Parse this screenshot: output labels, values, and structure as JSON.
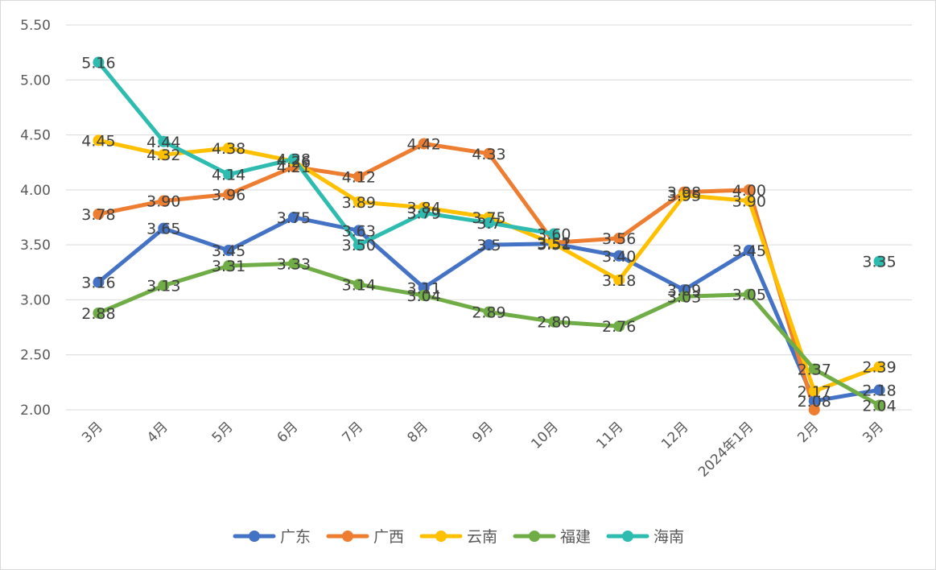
{
  "chart_data": {
    "type": "line",
    "title": "",
    "xlabel": "",
    "ylabel": "",
    "ylim": [
      2.0,
      5.5
    ],
    "yticks": [
      "2.00",
      "2.50",
      "3.00",
      "3.50",
      "4.00",
      "4.50",
      "5.00",
      "5.50"
    ],
    "grid": true,
    "legend_position": "bottom",
    "categories": [
      "3月",
      "4月",
      "5月",
      "6月",
      "7月",
      "8月",
      "9月",
      "10月",
      "11月",
      "12月",
      "2024年1月",
      "2月",
      "3月"
    ],
    "series": [
      {
        "name": "广东",
        "color": "#4472c4",
        "values": [
          3.16,
          3.65,
          3.45,
          3.75,
          3.63,
          3.11,
          3.5,
          3.51,
          3.4,
          3.09,
          3.45,
          2.08,
          2.18
        ],
        "labels": [
          "3.16",
          "3.65",
          "3.45",
          "3.75",
          "3.63",
          "3.11",
          "3.5",
          "3.51",
          "3.40",
          "3.09",
          "3.45",
          "2.08",
          "2.18"
        ]
      },
      {
        "name": "广西",
        "color": "#ed7d31",
        "values": [
          3.78,
          3.9,
          3.96,
          4.21,
          4.12,
          4.42,
          4.33,
          3.52,
          3.56,
          3.98,
          4.0,
          2.0,
          null
        ],
        "labels": [
          "3.78",
          "3.90",
          "3.96",
          "4.21",
          "4.12",
          "4.42",
          "4.33",
          "3.52",
          "3.56",
          "3.98",
          "4.00",
          "",
          ""
        ]
      },
      {
        "name": "云南",
        "color": "#ffc000",
        "values": [
          4.45,
          4.32,
          4.38,
          4.26,
          3.89,
          3.84,
          3.75,
          3.51,
          3.18,
          3.95,
          3.9,
          2.17,
          2.39
        ],
        "labels": [
          "4.45",
          "4.32",
          "4.38",
          "4.26",
          "3.89",
          "3.84",
          "3.75",
          "3.51",
          "3.18",
          "3.95",
          "3.90",
          "2.17",
          "2.39"
        ]
      },
      {
        "name": "福建",
        "color": "#70ad47",
        "values": [
          2.88,
          3.13,
          3.31,
          3.33,
          3.14,
          3.04,
          2.89,
          2.8,
          2.76,
          3.03,
          3.05,
          2.37,
          2.04
        ],
        "labels": [
          "2.88",
          "3.13",
          "3.31",
          "3.33",
          "3.14",
          "3.04",
          "2.89",
          "2.80",
          "2.76",
          "3.03",
          "3.05",
          "2.37",
          "2.04"
        ]
      },
      {
        "name": "海南",
        "color": "#2ebbb0",
        "values": [
          5.16,
          4.44,
          4.14,
          4.28,
          3.5,
          3.79,
          3.7,
          3.6,
          null,
          null,
          null,
          null,
          3.35
        ],
        "labels": [
          "5.16",
          "4.44",
          "4.14",
          "4.28",
          "3.50",
          "3.79",
          "3.7",
          "3.60",
          "",
          "",
          "",
          "",
          "3.35"
        ]
      }
    ]
  }
}
